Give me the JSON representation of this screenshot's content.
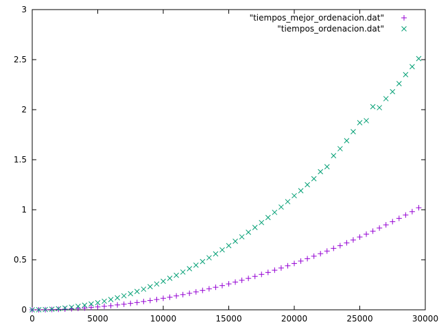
{
  "chart_data": {
    "type": "scatter",
    "title": "",
    "xlabel": "",
    "ylabel": "",
    "xlim": [
      0,
      30000
    ],
    "ylim": [
      0,
      3
    ],
    "x_ticks": [
      "0",
      "5000",
      "10000",
      "15000",
      "20000",
      "25000",
      "30000"
    ],
    "y_ticks": [
      "0",
      "0.5",
      "1",
      "1.5",
      "2",
      "2.5",
      "3"
    ],
    "grid": false,
    "legend_position": "top-right",
    "series": [
      {
        "name": "\"tiempos_mejor_ordenacion.dat\"",
        "marker": "plus",
        "color": "#9400d3",
        "x": [
          0,
          500,
          1000,
          1500,
          2000,
          2500,
          3000,
          3500,
          4000,
          4500,
          5000,
          5500,
          6000,
          6500,
          7000,
          7500,
          8000,
          8500,
          9000,
          9500,
          10000,
          10500,
          11000,
          11500,
          12000,
          12500,
          13000,
          13500,
          14000,
          14500,
          15000,
          15500,
          16000,
          16500,
          17000,
          17500,
          18000,
          18500,
          19000,
          19500,
          20000,
          20500,
          21000,
          21500,
          22000,
          22500,
          23000,
          23500,
          24000,
          24500,
          25000,
          25500,
          26000,
          26500,
          27000,
          27500,
          28000,
          28500,
          29000,
          29500
        ],
        "y": [
          0.0,
          0.0003,
          0.001,
          0.003,
          0.005,
          0.007,
          0.01,
          0.014,
          0.018,
          0.023,
          0.029,
          0.035,
          0.041,
          0.049,
          0.056,
          0.064,
          0.073,
          0.083,
          0.093,
          0.103,
          0.115,
          0.126,
          0.139,
          0.152,
          0.165,
          0.179,
          0.194,
          0.21,
          0.225,
          0.242,
          0.259,
          0.277,
          0.295,
          0.314,
          0.334,
          0.354,
          0.374,
          0.396,
          0.418,
          0.44,
          0.463,
          0.487,
          0.511,
          0.536,
          0.561,
          0.587,
          0.614,
          0.641,
          0.669,
          0.698,
          0.727,
          0.756,
          0.786,
          0.817,
          0.849,
          0.881,
          0.914,
          0.947,
          0.981,
          1.02
        ]
      },
      {
        "name": "\"tiempos_ordenacion.dat\"",
        "marker": "cross",
        "color": "#009e73",
        "x": [
          0,
          500,
          1000,
          1500,
          2000,
          2500,
          3000,
          3500,
          4000,
          4500,
          5000,
          5500,
          6000,
          6500,
          7000,
          7500,
          8000,
          8500,
          9000,
          9500,
          10000,
          10500,
          11000,
          11500,
          12000,
          12500,
          13000,
          13500,
          14000,
          14500,
          15000,
          15500,
          16000,
          16500,
          17000,
          17500,
          18000,
          18500,
          19000,
          19500,
          20000,
          20500,
          21000,
          21500,
          22000,
          22500,
          23000,
          23500,
          24000,
          24500,
          25000,
          25500,
          26000,
          26500,
          27000,
          27500,
          28000,
          28500,
          29000,
          29500
        ],
        "y": [
          0.0,
          0.001,
          0.003,
          0.006,
          0.011,
          0.018,
          0.026,
          0.035,
          0.046,
          0.058,
          0.071,
          0.086,
          0.103,
          0.12,
          0.14,
          0.161,
          0.183,
          0.206,
          0.231,
          0.258,
          0.285,
          0.315,
          0.345,
          0.377,
          0.411,
          0.446,
          0.482,
          0.52,
          0.559,
          0.599,
          0.641,
          0.685,
          0.729,
          0.775,
          0.823,
          0.872,
          0.922,
          0.974,
          1.027,
          1.081,
          1.14,
          1.19,
          1.25,
          1.31,
          1.38,
          1.43,
          1.54,
          1.61,
          1.69,
          1.78,
          1.87,
          1.89,
          2.03,
          2.02,
          2.11,
          2.18,
          2.26,
          2.35,
          2.43,
          2.51
        ]
      }
    ]
  }
}
